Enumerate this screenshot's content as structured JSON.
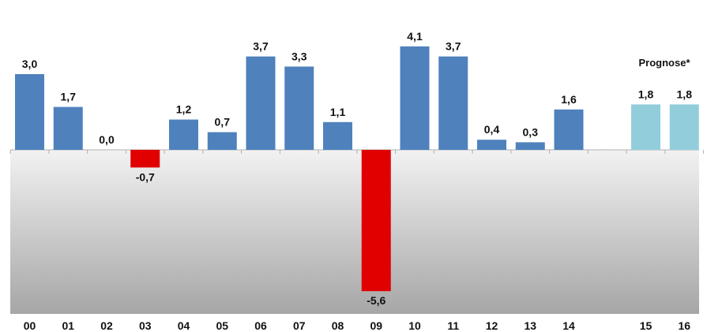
{
  "chart_data": {
    "type": "bar",
    "title": "",
    "xlabel": "",
    "ylabel": "",
    "categories": [
      "00",
      "01",
      "02",
      "03",
      "04",
      "05",
      "06",
      "07",
      "08",
      "09",
      "10",
      "11",
      "12",
      "13",
      "14",
      "",
      "15",
      "16"
    ],
    "values": [
      3.0,
      1.7,
      0.0,
      -0.7,
      1.2,
      0.7,
      3.7,
      3.3,
      1.1,
      -5.6,
      4.1,
      3.7,
      0.4,
      0.3,
      1.6,
      null,
      1.8,
      1.8
    ],
    "value_labels": [
      "3,0",
      "1,7",
      "0,0",
      "-0,7",
      "1,2",
      "0,7",
      "3,7",
      "3,3",
      "1,1",
      "-5,6",
      "4,1",
      "3,7",
      "0,4",
      "0,3",
      "1,6",
      "",
      "1,8",
      "1,8"
    ],
    "forecast": [
      false,
      false,
      false,
      false,
      false,
      false,
      false,
      false,
      false,
      false,
      false,
      false,
      false,
      false,
      false,
      false,
      true,
      true
    ],
    "annotation": "Prognose*",
    "ylim": [
      -6.5,
      5.5
    ],
    "grid": false,
    "colors": {
      "positive": "#4F81BD",
      "negative": "#E00000",
      "forecast": "#92CDDC",
      "gradient_top": "#f2f2f2",
      "gradient_bottom": "#a6a6a6",
      "axis": "#b0b0b0"
    }
  }
}
